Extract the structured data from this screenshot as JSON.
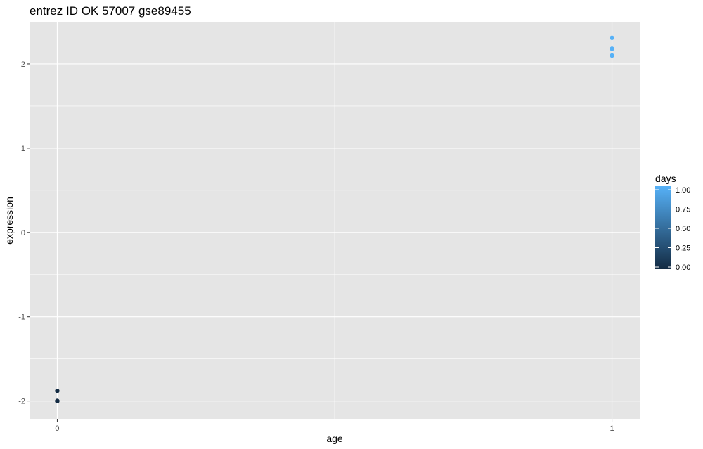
{
  "chart_data": {
    "type": "scatter",
    "title": "entrez ID OK 57007 gse89455",
    "xlabel": "age",
    "ylabel": "expression",
    "xlim": [
      -0.05,
      1.05
    ],
    "ylim": [
      -2.22,
      2.5
    ],
    "x_ticks": [
      0,
      1
    ],
    "x_tick_labels": [
      "0",
      "1"
    ],
    "y_ticks": [
      -2,
      -1,
      0,
      1,
      2
    ],
    "y_tick_labels": [
      "-2",
      "-1",
      "0",
      "1",
      "2"
    ],
    "grid": true,
    "points": [
      {
        "x": 0,
        "y": -1.88,
        "days": 0.0
      },
      {
        "x": 0,
        "y": -2.0,
        "days": 0.0
      },
      {
        "x": 0,
        "y": -2.0,
        "days": 0.0
      },
      {
        "x": 1,
        "y": 2.31,
        "days": 1.0
      },
      {
        "x": 1,
        "y": 2.18,
        "days": 1.0
      },
      {
        "x": 1,
        "y": 2.1,
        "days": 1.0
      }
    ],
    "legend": {
      "title": "days",
      "position": "right",
      "ticks": [
        "0.00",
        "0.25",
        "0.50",
        "0.75",
        "1.00"
      ],
      "tick_values": [
        0,
        0.25,
        0.5,
        0.75,
        1.0
      ],
      "low_color": "#132B43",
      "high_color": "#56B1F7"
    },
    "panel_color": "#E5E5E5",
    "grid_color": "#FFFFFF"
  }
}
